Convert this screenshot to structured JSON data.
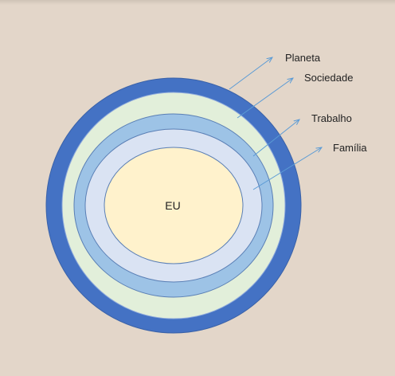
{
  "diagram": {
    "center_label": "EU",
    "rings": [
      {
        "label": "Planeta",
        "color": "#4472c4"
      },
      {
        "label": "Sociedade",
        "color": "#e2efda"
      },
      {
        "label": "Trabalho",
        "color": "#9dc3e6"
      },
      {
        "label": "Família",
        "color": "#dae3f3"
      }
    ],
    "center_color": "#fff2cc",
    "arrow_color": "#5b9bd5",
    "background_color": "#e3d6c9"
  }
}
